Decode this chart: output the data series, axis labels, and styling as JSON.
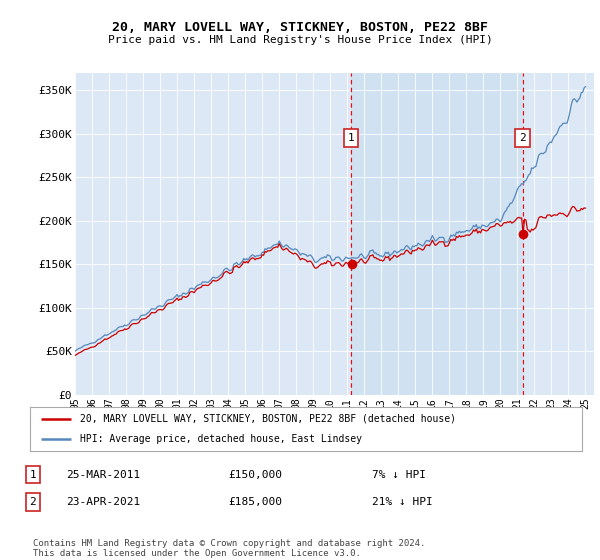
{
  "title": "20, MARY LOVELL WAY, STICKNEY, BOSTON, PE22 8BF",
  "subtitle": "Price paid vs. HM Land Registry's House Price Index (HPI)",
  "legend_label_red": "20, MARY LOVELL WAY, STICKNEY, BOSTON, PE22 8BF (detached house)",
  "legend_label_blue": "HPI: Average price, detached house, East Lindsey",
  "annotation1_date": "25-MAR-2011",
  "annotation1_price": "£150,000",
  "annotation1_pct": "7% ↓ HPI",
  "annotation2_date": "23-APR-2021",
  "annotation2_price": "£185,000",
  "annotation2_pct": "21% ↓ HPI",
  "footer": "Contains HM Land Registry data © Crown copyright and database right 2024.\nThis data is licensed under the Open Government Licence v3.0.",
  "background_color": "#dce8f5",
  "plot_bg_color": "#dce8f5",
  "shade_color": "#c8ddf0",
  "red_color": "#cc0000",
  "blue_color": "#5588bb",
  "grid_color": "#ffffff",
  "ylim": [
    0,
    370000
  ],
  "yticks": [
    0,
    50000,
    100000,
    150000,
    200000,
    250000,
    300000,
    350000
  ],
  "ytick_labels": [
    "£0",
    "£50K",
    "£100K",
    "£150K",
    "£200K",
    "£250K",
    "£300K",
    "£350K"
  ],
  "year_start": 1995,
  "year_end": 2025,
  "sale1_year": 2011.23,
  "sale1_price": 150000,
  "sale2_year": 2021.31,
  "sale2_price": 185000
}
